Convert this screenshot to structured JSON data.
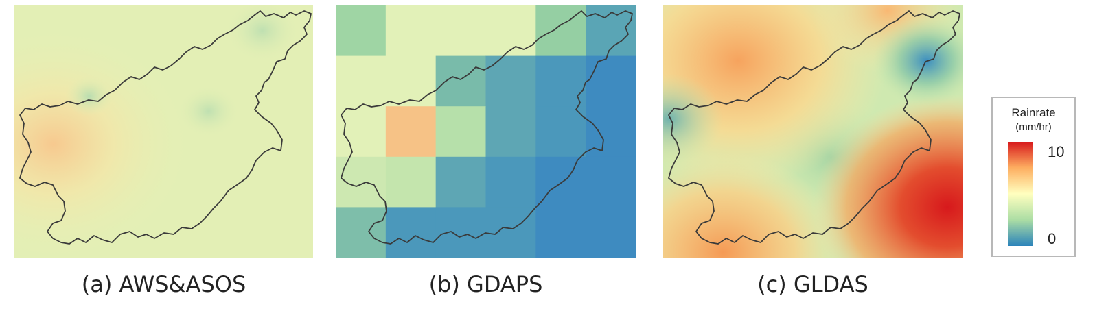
{
  "panels": [
    {
      "id": "aws",
      "caption": "(a) AWS&ASOS",
      "rendering": "smooth interpolated field, mostly pale green-yellow with a warm patch to the west"
    },
    {
      "id": "gdaps",
      "caption": "(b) GDAPS",
      "rendering": "coarse 6x5 grid of cells, green in the north-west to blue in the south-east"
    },
    {
      "id": "gldas",
      "caption": "(c) GLDAS",
      "rendering": "smooth field with orange north and south-west, red south-east, green-blue centre"
    }
  ],
  "legend": {
    "title": "Rainrate",
    "unit": "(mm/hr)",
    "max_label": "10",
    "min_label": "0",
    "colors": [
      "#d7191c",
      "#fdae61",
      "#ffffbf",
      "#abdda4",
      "#2b83ba"
    ]
  },
  "gdaps_grid": {
    "cols": 6,
    "rows": 5,
    "cells": [
      [
        "#9fd5a4",
        "#e2f1b8",
        "#e2f1b8",
        "#e2f1b8",
        "#95cfa3",
        "#5aa5b5"
      ],
      [
        "#e2f1b8",
        "#e2f1b8",
        "#79bbaa",
        "#5ea6b4",
        "#4b98bb",
        "#3e8bc0"
      ],
      [
        "#e2f1b8",
        "#f6c286",
        "#b6e0aa",
        "#5ea6b4",
        "#4b98bb",
        "#3e8bc0"
      ],
      [
        "#cde8b1",
        "#c4e5ad",
        "#5ea6b4",
        "#4b98bb",
        "#3e8bc0",
        "#3e8bc0"
      ],
      [
        "#7ebeaa",
        "#4b98bb",
        "#4b98bb",
        "#4b98bb",
        "#3e8bc0",
        "#3e8bc0"
      ]
    ]
  }
}
